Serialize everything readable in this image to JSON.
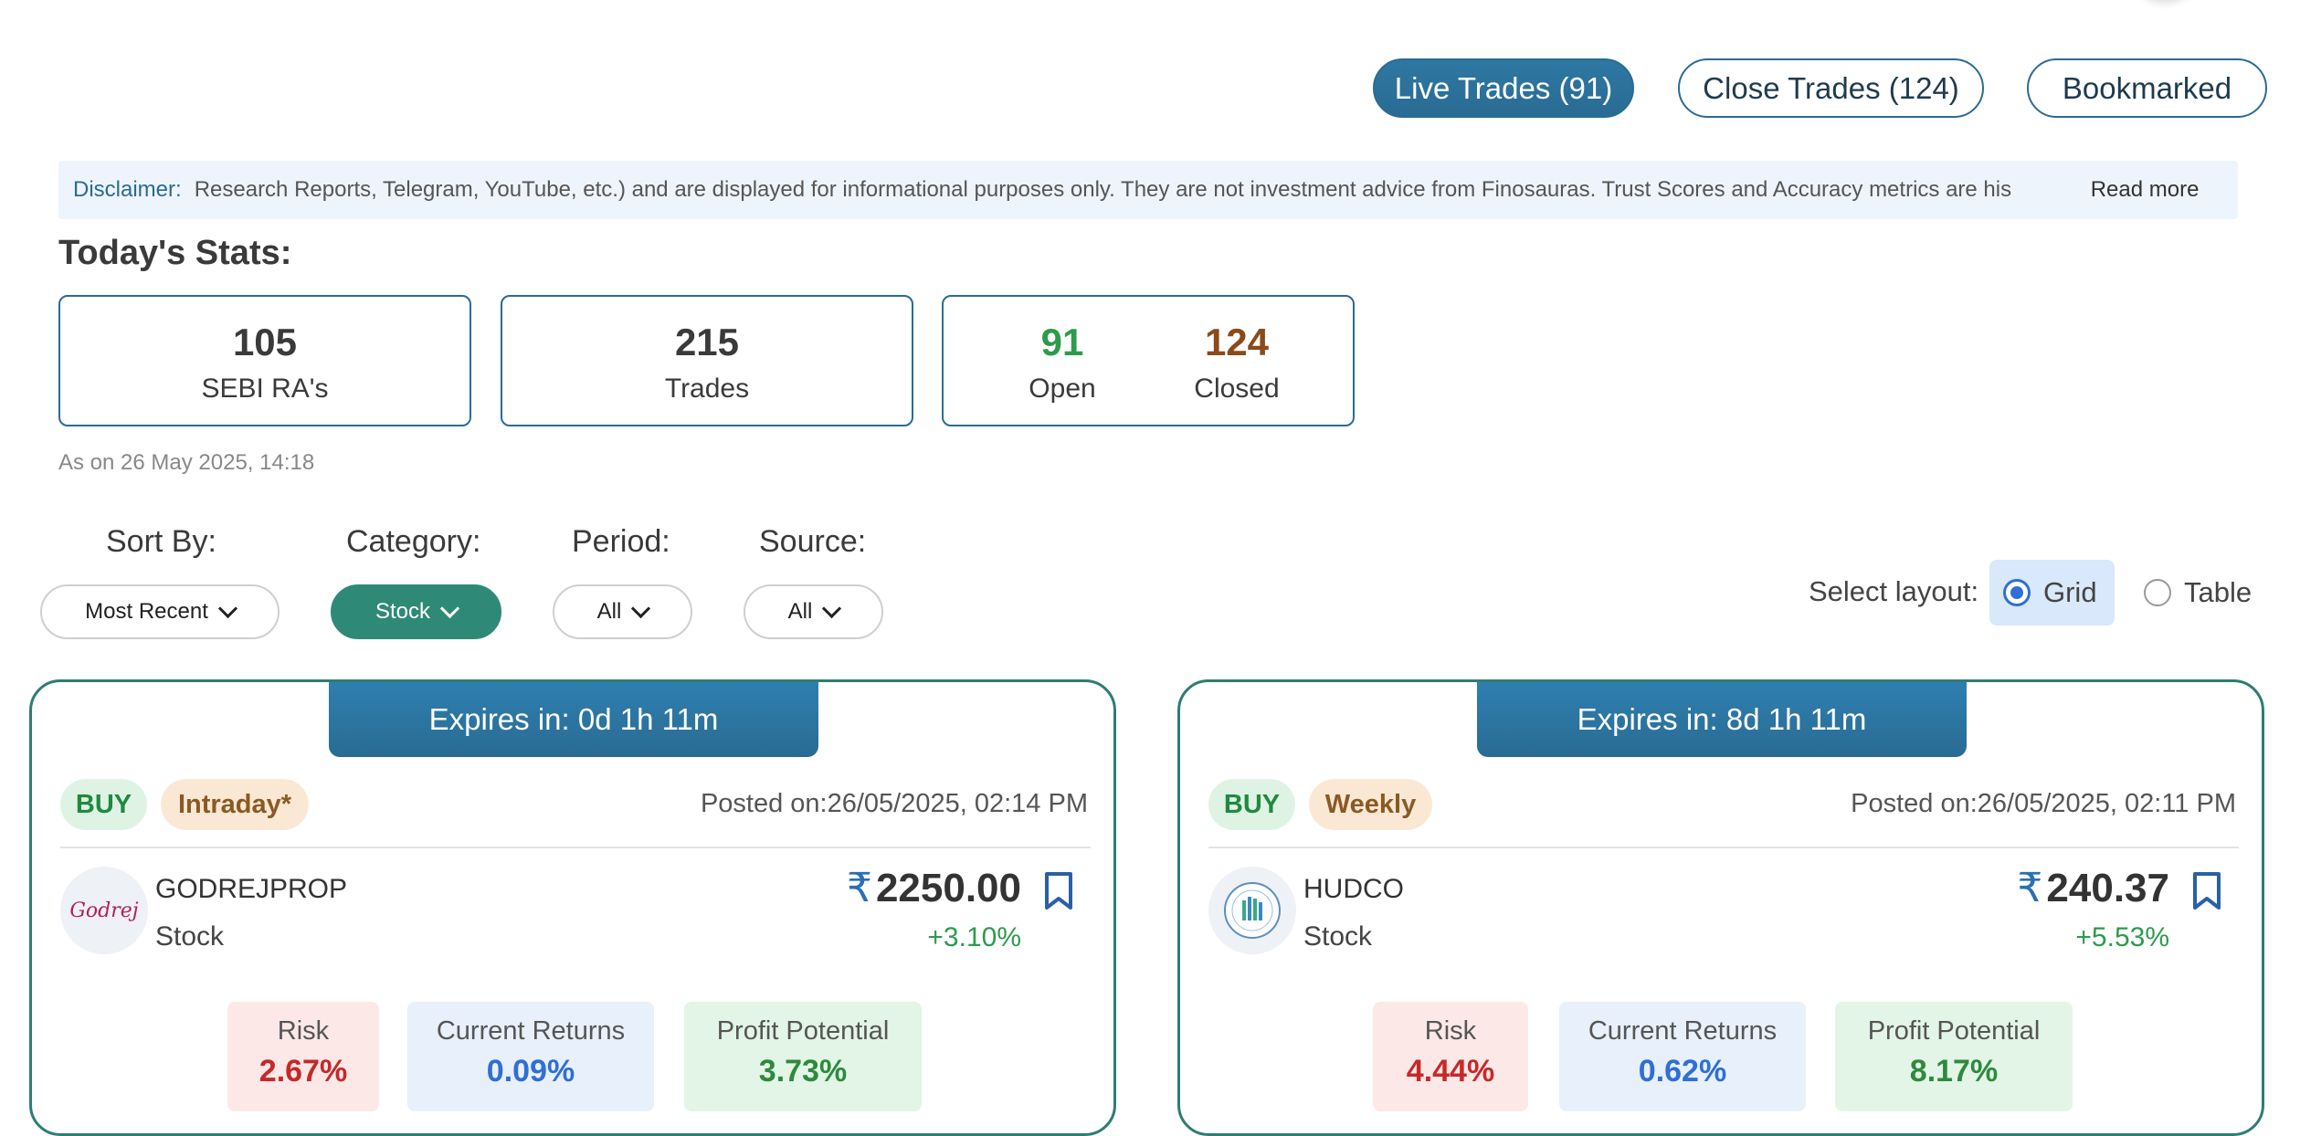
{
  "tabs": [
    {
      "label": "Live Trades (91)",
      "active": true
    },
    {
      "label": "Close Trades (124)",
      "active": false
    },
    {
      "label": "Bookmarked",
      "active": false
    }
  ],
  "disclaimer": {
    "label": "Disclaimer:",
    "text": "Research Reports, Telegram, YouTube, etc.) and are displayed for informational purposes only. They are not investment advice from Finosauras. Trust Scores and Accuracy metrics are his",
    "read_more": "Read more"
  },
  "stats": {
    "title": "Today's Stats:",
    "sebi": {
      "value": "105",
      "label": "SEBI RA's"
    },
    "trades": {
      "value": "215",
      "label": "Trades"
    },
    "open": {
      "value": "91",
      "label": "Open"
    },
    "closed": {
      "value": "124",
      "label": "Closed"
    },
    "as_on": "As on 26 May 2025, 14:18"
  },
  "filters": {
    "sort": {
      "label": "Sort By:",
      "value": "Most Recent"
    },
    "category": {
      "label": "Category:",
      "value": "Stock"
    },
    "period": {
      "label": "Period:",
      "value": "All"
    },
    "source": {
      "label": "Source:",
      "value": "All"
    }
  },
  "layout": {
    "label": "Select layout:",
    "options": [
      "Grid",
      "Table"
    ],
    "selected": "Grid"
  },
  "colors": {
    "primary": "#2a6b93",
    "accent_green": "#2e8a77",
    "open_green": "#2e9a4d",
    "closed_brown": "#8a4a1a"
  },
  "cards": [
    {
      "expires": "Expires in: 0d 1h 11m",
      "action": "BUY",
      "term": "Intraday*",
      "posted": "Posted on:26/05/2025, 02:14 PM",
      "symbol": "GODREJPROP",
      "category": "Stock",
      "logo_text": "Godrej",
      "currency": "₹",
      "price": "2250.00",
      "change": "+3.10%",
      "risk_label": "Risk",
      "risk": "2.67%",
      "returns_label": "Current Returns",
      "returns": "0.09%",
      "potential_label": "Profit Potential",
      "potential": "3.73%"
    },
    {
      "expires": "Expires in: 8d 1h 11m",
      "action": "BUY",
      "term": "Weekly",
      "posted": "Posted on:26/05/2025, 02:11 PM",
      "symbol": "HUDCO",
      "category": "Stock",
      "currency": "₹",
      "price": "240.37",
      "change": "+5.53%",
      "risk_label": "Risk",
      "risk": "4.44%",
      "returns_label": "Current Returns",
      "returns": "0.62%",
      "potential_label": "Profit Potential",
      "potential": "8.17%"
    }
  ]
}
